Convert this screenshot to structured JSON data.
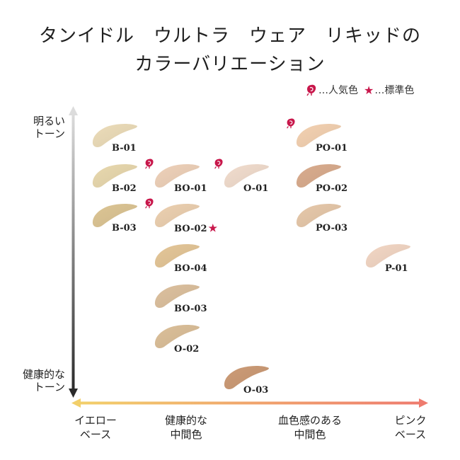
{
  "title": {
    "line1": "タンイドル　ウルトラ　ウェア　リキッドの",
    "line2": "カラーバリエーション"
  },
  "legend": {
    "popular_label": "…人気色",
    "standard_label": "…標準色",
    "popular_icon": "rose-icon",
    "standard_icon": "star-icon",
    "standard_color": "#c8174b"
  },
  "y_axis": {
    "top_label_line1": "明るい",
    "top_label_line2": "トーン",
    "bottom_label_line1": "健康的な",
    "bottom_label_line2": "トーン"
  },
  "x_axis": {
    "labels": [
      {
        "line1": "イエロー",
        "line2": "ベース"
      },
      {
        "line1": "健康的な",
        "line2": "中間色"
      },
      {
        "line1": "血色感のある",
        "line2": "中間色"
      },
      {
        "line1": "ピンク",
        "line2": "ベース"
      }
    ],
    "gradient_start": "#f2cf6a",
    "gradient_end": "#ee7b6e"
  },
  "shades": [
    {
      "code": "B-01",
      "color": "#ecdcb9",
      "popular": false,
      "standard": false
    },
    {
      "code": "B-02",
      "color": "#e8d8ae",
      "popular": false,
      "standard": false
    },
    {
      "code": "B-03",
      "color": "#dcc594",
      "popular": false,
      "standard": false
    },
    {
      "code": "BO-01",
      "color": "#eed1b9",
      "popular": true,
      "standard": false
    },
    {
      "code": "BO-02",
      "color": "#ecd0b0",
      "popular": true,
      "standard": true
    },
    {
      "code": "BO-04",
      "color": "#e4c698",
      "popular": false,
      "standard": false
    },
    {
      "code": "BO-03",
      "color": "#dcc09e",
      "popular": false,
      "standard": false
    },
    {
      "code": "O-02",
      "color": "#dbbf99",
      "popular": false,
      "standard": false
    },
    {
      "code": "O-01",
      "color": "#f1dccd",
      "popular": true,
      "standard": false
    },
    {
      "code": "O-03",
      "color": "#cc9b76",
      "popular": false,
      "standard": false
    },
    {
      "code": "PO-01",
      "color": "#f3d1b1",
      "popular": true,
      "standard": false
    },
    {
      "code": "PO-02",
      "color": "#d9ac8e",
      "popular": false,
      "standard": false
    },
    {
      "code": "PO-03",
      "color": "#e6c8aa",
      "popular": false,
      "standard": false
    },
    {
      "code": "P-01",
      "color": "#f2d6c4",
      "popular": false,
      "standard": false
    }
  ]
}
